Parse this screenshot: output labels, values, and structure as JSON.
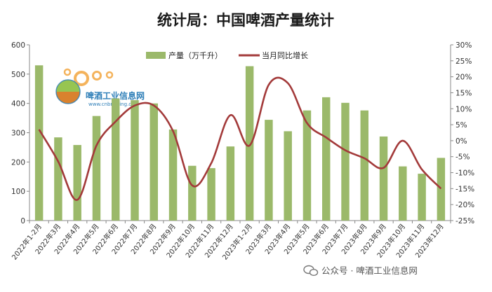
{
  "chart_data": {
    "type": "bar+line",
    "title": "统计局：中国啤酒产量统计",
    "categories": [
      "2022年1-2月",
      "2022年3月",
      "2022年4月",
      "2022年5月",
      "2022年6月",
      "2022年7月",
      "2022年8月",
      "2022年9月",
      "2022年10月",
      "2022年11月",
      "2022年12月",
      "2023年1-2月",
      "2023年3月",
      "2023年4月",
      "2023年5月",
      "2023年6月",
      "2023年7月",
      "2023年8月",
      "2023年9月",
      "2023年10月",
      "2023年11月",
      "2023年12月"
    ],
    "series": [
      {
        "name": "产量（万千升）",
        "type": "bar",
        "axis": "left",
        "color": "#9bb96a",
        "values": [
          530,
          284,
          258,
          357,
          417,
          411,
          400,
          311,
          187,
          179,
          253,
          527,
          344,
          305,
          376,
          421,
          402,
          376,
          287,
          185,
          160,
          214
        ]
      },
      {
        "name": "当月同比增长",
        "type": "line",
        "axis": "right",
        "color": "#a33a3a",
        "values": [
          3.5,
          -6.5,
          -18.5,
          -1.5,
          6.0,
          11.0,
          11.0,
          3.0,
          -14.0,
          -7.0,
          8.0,
          -1.5,
          17.5,
          18.0,
          5.5,
          1.0,
          -3.0,
          -5.5,
          -8.5,
          0.0,
          -9.0,
          -15.0
        ]
      }
    ],
    "y_left": {
      "min": 0,
      "max": 600,
      "ticks": [
        "0",
        "100",
        "200",
        "300",
        "400",
        "500",
        "600"
      ]
    },
    "y_right": {
      "min": -25,
      "max": 30,
      "ticks": [
        "-25%",
        "-20%",
        "-15%",
        "-10%",
        "-5%",
        "0%",
        "5%",
        "10%",
        "15%",
        "20%",
        "25%",
        "30%"
      ]
    },
    "grid": false,
    "legend_position": "top-center"
  },
  "watermark": {
    "name": "啤酒工业信息网",
    "url": "www.cnbrewing.com"
  },
  "footer": {
    "text": "公众号 · 啤酒工业信息网"
  },
  "colors": {
    "bar": "#9bb96a",
    "line": "#a33a3a",
    "axis": "#888888"
  }
}
